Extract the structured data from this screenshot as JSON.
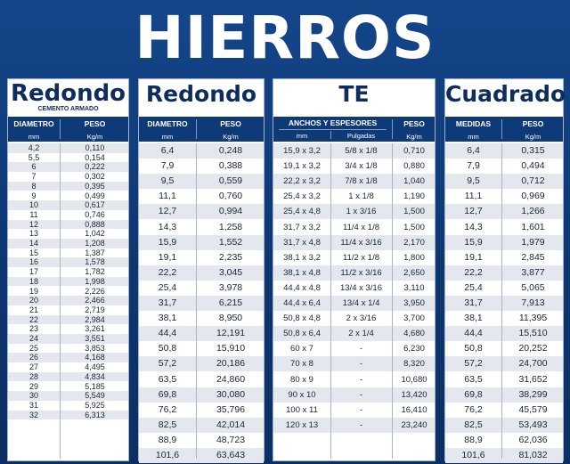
{
  "main_title": "HIERROS",
  "colors": {
    "background": "#0f3a78",
    "header": "#0f3a78",
    "panel": "#ffffff",
    "stripe": "#e4e8ee",
    "title_text": "#0e2d5e"
  },
  "redondo_cemento": {
    "title": "Redondo",
    "subtitle": "CEMENTO ARMADO",
    "col_diametro": "DIAMETRO",
    "col_diametro_unit": "mm",
    "col_peso": "PESO",
    "col_peso_unit": "Kg/m",
    "rows": [
      [
        "4,2",
        "0,110"
      ],
      [
        "5,5",
        "0,154"
      ],
      [
        "6",
        "0,222"
      ],
      [
        "7",
        "0,302"
      ],
      [
        "8",
        "0,395"
      ],
      [
        "9",
        "0,499"
      ],
      [
        "10",
        "0,617"
      ],
      [
        "11",
        "0,746"
      ],
      [
        "12",
        "0,888"
      ],
      [
        "13",
        "1,042"
      ],
      [
        "14",
        "1,208"
      ],
      [
        "15",
        "1,387"
      ],
      [
        "16",
        "1,578"
      ],
      [
        "17",
        "1,782"
      ],
      [
        "18",
        "1,998"
      ],
      [
        "19",
        "2,226"
      ],
      [
        "20",
        "2,466"
      ],
      [
        "21",
        "2,719"
      ],
      [
        "22",
        "2,984"
      ],
      [
        "23",
        "3,261"
      ],
      [
        "24",
        "3,551"
      ],
      [
        "25",
        "3,853"
      ],
      [
        "26",
        "4,168"
      ],
      [
        "27",
        "4,495"
      ],
      [
        "28",
        "4,834"
      ],
      [
        "29",
        "5,185"
      ],
      [
        "30",
        "5,549"
      ],
      [
        "31",
        "5,925"
      ],
      [
        "32",
        "6,313"
      ]
    ]
  },
  "redondo": {
    "title": "Redondo",
    "col_diametro": "DIAMETRO",
    "col_diametro_unit": "mm",
    "col_peso": "PESO",
    "col_peso_unit": "Kg/m",
    "rows": [
      [
        "6,4",
        "0,248"
      ],
      [
        "7,9",
        "0,388"
      ],
      [
        "9,5",
        "0,559"
      ],
      [
        "11,1",
        "0,760"
      ],
      [
        "12,7",
        "0,994"
      ],
      [
        "14,3",
        "1,258"
      ],
      [
        "15,9",
        "1,552"
      ],
      [
        "19,1",
        "2,235"
      ],
      [
        "22,2",
        "3,045"
      ],
      [
        "25,4",
        "3,978"
      ],
      [
        "31,7",
        "6,215"
      ],
      [
        "38,1",
        "8,950"
      ],
      [
        "44,4",
        "12,191"
      ],
      [
        "50,8",
        "15,910"
      ],
      [
        "57,2",
        "20,186"
      ],
      [
        "63,5",
        "24,860"
      ],
      [
        "69,8",
        "30,080"
      ],
      [
        "76,2",
        "35,796"
      ],
      [
        "82,5",
        "42,014"
      ],
      [
        "88,9",
        "48,723"
      ],
      [
        "101,6",
        "63,643"
      ]
    ]
  },
  "te": {
    "title": "TE",
    "col_group": "ANCHOS Y ESPESORES",
    "col_mm": "mm",
    "col_pulgadas": "Pulgadas",
    "col_peso": "PESO",
    "col_peso_unit": "Kg/m",
    "rows": [
      [
        "15,9 x 3,2",
        "5/8 x 1/8",
        "0,710"
      ],
      [
        "19,1 x 3,2",
        "3/4 x 1/8",
        "0,880"
      ],
      [
        "22,2 x 3,2",
        "7/8 x 1/8",
        "1,040"
      ],
      [
        "25,4 x 3,2",
        "1 x 1/8",
        "1,190"
      ],
      [
        "25,4 x 4,8",
        "1 x 3/16",
        "1,500"
      ],
      [
        "31,7 x 3,2",
        "11/4 x 1/8",
        "1,500"
      ],
      [
        "31,7 x 4,8",
        "11/4 x 3/16",
        "2,170"
      ],
      [
        "38,1 x 3,2",
        "11/2 x 1/8",
        "1,800"
      ],
      [
        "38,1 x 4,8",
        "11/2 x 3/16",
        "2,650"
      ],
      [
        "44,4 x 4,8",
        "13/4 x 3/16",
        "3,110"
      ],
      [
        "44,4 x 6,4",
        "13/4 x 1/4",
        "3,950"
      ],
      [
        "50,8 x 4,8",
        "2 x 3/16",
        "3,700"
      ],
      [
        "50,8 x 6,4",
        "2 x 1/4",
        "4,680"
      ],
      [
        "60 x 7",
        "-",
        "6,230"
      ],
      [
        "70 x 8",
        "-",
        "8,320"
      ],
      [
        "80 x 9",
        "-",
        "10,680"
      ],
      [
        "90 x 10",
        "-",
        "13,420"
      ],
      [
        "100 x 11",
        "-",
        "16,410"
      ],
      [
        "120 x 13",
        "-",
        "23,240"
      ]
    ]
  },
  "cuadrado": {
    "title": "Cuadrado",
    "col_medidas": "MEDIDAS",
    "col_medidas_unit": "mm",
    "col_peso": "PESO",
    "col_peso_unit": "Kg/m",
    "rows": [
      [
        "6,4",
        "0,315"
      ],
      [
        "7,9",
        "0,494"
      ],
      [
        "9,5",
        "0,712"
      ],
      [
        "11,1",
        "0,969"
      ],
      [
        "12,7",
        "1,266"
      ],
      [
        "14,3",
        "1,601"
      ],
      [
        "15,9",
        "1,979"
      ],
      [
        "19,1",
        "2,845"
      ],
      [
        "22,2",
        "3,877"
      ],
      [
        "25,4",
        "5,065"
      ],
      [
        "31,7",
        "7,913"
      ],
      [
        "38,1",
        "11,395"
      ],
      [
        "44,4",
        "15,510"
      ],
      [
        "50,8",
        "20,252"
      ],
      [
        "57,2",
        "24,700"
      ],
      [
        "63,5",
        "31,652"
      ],
      [
        "69,8",
        "38,299"
      ],
      [
        "76,2",
        "45,579"
      ],
      [
        "82,5",
        "53,493"
      ],
      [
        "88,9",
        "62,036"
      ],
      [
        "101,6",
        "81,032"
      ]
    ]
  }
}
